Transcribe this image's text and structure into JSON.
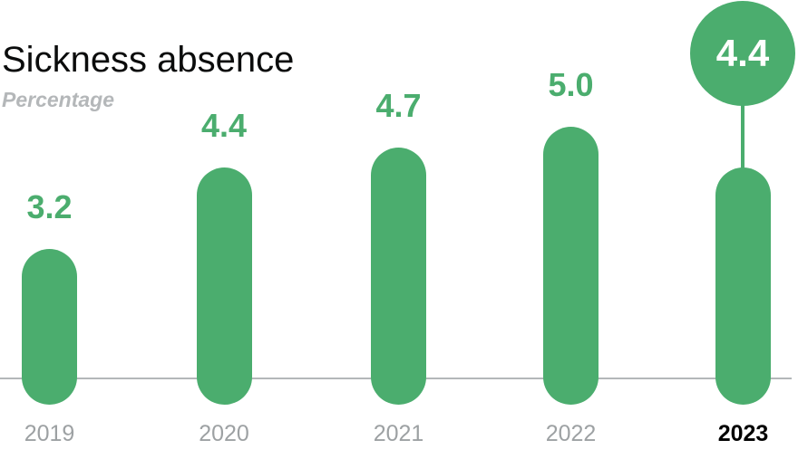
{
  "chart_data": {
    "type": "bar",
    "title": "Sickness absence",
    "subtitle": "Percentage",
    "ylabel": "Percentage",
    "xlabel": "",
    "categories": [
      "2019",
      "2020",
      "2021",
      "2022",
      "2023"
    ],
    "values": [
      3.2,
      4.4,
      4.7,
      5.0,
      4.4
    ],
    "value_labels": [
      "3.2",
      "4.4",
      "4.7",
      "5.0",
      "4.4"
    ],
    "ylim": [
      0,
      5.5
    ],
    "grid": false,
    "legend": false,
    "bar_style": "rounded-capsule, bars extend below baseline",
    "highlight": {
      "category": "2023",
      "value_label": "4.4",
      "style": "value shown in green circle connected to bar by stem line; year label black bold"
    },
    "colors": {
      "bar": "#4bad6e",
      "value_label": "#4bad6e",
      "axis_line": "#b4b7b9",
      "year_label": "#9da1a3",
      "highlight_year_label": "#000000",
      "title": "#0b0c0c",
      "subtitle": "#b4b7b9",
      "callout_text": "#ffffff"
    }
  }
}
